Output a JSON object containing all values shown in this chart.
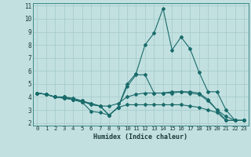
{
  "xlabel": "Humidex (Indice chaleur)",
  "background_color": "#c2e0e0",
  "grid_color": "#a8cccc",
  "line_color": "#1a6b6b",
  "xlim": [
    -0.5,
    23.5
  ],
  "ylim": [
    1.8,
    11.2
  ],
  "yticks": [
    2,
    3,
    4,
    5,
    6,
    7,
    8,
    9,
    10,
    11
  ],
  "xticks": [
    0,
    1,
    2,
    3,
    4,
    5,
    6,
    7,
    8,
    9,
    10,
    11,
    12,
    13,
    14,
    15,
    16,
    17,
    18,
    19,
    20,
    21,
    22,
    23
  ],
  "lines": [
    {
      "x": [
        0,
        1,
        2,
        3,
        4,
        5,
        6,
        7,
        8,
        9,
        10,
        11,
        12,
        13,
        14,
        15,
        16,
        17,
        18,
        19,
        20,
        21,
        22,
        23
      ],
      "y": [
        4.3,
        4.2,
        4.0,
        4.0,
        3.8,
        3.6,
        2.9,
        2.8,
        2.6,
        3.2,
        3.4,
        3.4,
        3.4,
        3.4,
        3.4,
        3.4,
        3.4,
        3.3,
        3.2,
        3.0,
        2.8,
        2.2,
        2.2,
        2.2
      ]
    },
    {
      "x": [
        0,
        1,
        2,
        3,
        4,
        5,
        6,
        7,
        8,
        9,
        10,
        11,
        12,
        13,
        14,
        15,
        16,
        17,
        18,
        19,
        20,
        21,
        22,
        23
      ],
      "y": [
        4.3,
        4.2,
        4.0,
        4.0,
        3.9,
        3.7,
        3.4,
        3.3,
        3.3,
        3.5,
        4.0,
        4.2,
        4.3,
        4.3,
        4.3,
        4.3,
        4.4,
        4.3,
        4.2,
        3.7,
        3.0,
        2.5,
        2.2,
        2.2
      ]
    },
    {
      "x": [
        0,
        1,
        2,
        3,
        4,
        5,
        6,
        7,
        8,
        9,
        10,
        11,
        12,
        13,
        14,
        15,
        16,
        17,
        18,
        19,
        20,
        21,
        22,
        23
      ],
      "y": [
        4.3,
        4.2,
        4.0,
        3.9,
        3.8,
        3.6,
        3.5,
        3.3,
        2.6,
        3.2,
        4.8,
        5.7,
        5.7,
        4.3,
        4.3,
        4.4,
        4.4,
        4.4,
        4.3,
        3.8,
        3.0,
        2.2,
        2.2,
        2.2
      ]
    },
    {
      "x": [
        0,
        1,
        2,
        3,
        4,
        5,
        6,
        7,
        8,
        9,
        10,
        11,
        12,
        13,
        14,
        15,
        16,
        17,
        18,
        19,
        20,
        21,
        22,
        23
      ],
      "y": [
        4.3,
        4.2,
        4.0,
        3.9,
        3.8,
        3.7,
        3.5,
        3.3,
        2.6,
        3.2,
        5.0,
        5.8,
        8.0,
        8.9,
        10.8,
        7.6,
        8.6,
        7.7,
        5.9,
        4.4,
        4.4,
        3.0,
        2.2,
        2.2
      ]
    }
  ]
}
